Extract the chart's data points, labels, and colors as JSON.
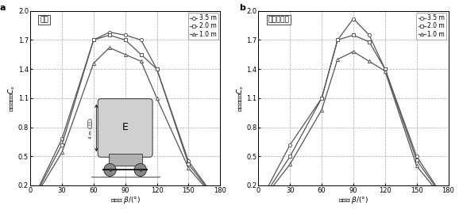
{
  "x": [
    0,
    30,
    60,
    75,
    90,
    105,
    120,
    150,
    180
  ],
  "panel_a": {
    "title": "头车",
    "series_35": [
      0.0,
      0.68,
      1.7,
      1.78,
      1.75,
      1.7,
      1.4,
      0.45,
      0.0
    ],
    "series_20": [
      0.0,
      0.62,
      1.7,
      1.75,
      1.7,
      1.55,
      1.4,
      0.42,
      0.0
    ],
    "series_10": [
      0.0,
      0.54,
      1.46,
      1.62,
      1.55,
      1.48,
      1.1,
      0.38,
      0.0
    ]
  },
  "panel_b": {
    "title": "第二节车厢",
    "series_35": [
      0.0,
      0.62,
      1.1,
      1.7,
      1.92,
      1.75,
      1.4,
      0.5,
      0.0
    ],
    "series_20": [
      0.0,
      0.5,
      1.1,
      1.7,
      1.75,
      1.68,
      1.4,
      0.46,
      0.0
    ],
    "series_10": [
      0.0,
      0.42,
      0.98,
      1.5,
      1.58,
      1.48,
      1.38,
      0.4,
      0.0
    ]
  },
  "legend_labels": [
    "3.5 m",
    "2.0 m",
    "1.0 m"
  ],
  "markers": [
    "o",
    "s",
    "^"
  ],
  "line_color": "#555555",
  "ylabel": "侧向力系数$C_s$",
  "xlabel": "风向角 $\\beta$/(°)",
  "ylim": [
    0.2,
    2.0
  ],
  "xlim": [
    0,
    180
  ],
  "yticks": [
    0.2,
    0.5,
    0.8,
    1.1,
    1.4,
    1.7,
    2.0
  ],
  "xticks": [
    0,
    30,
    60,
    90,
    120,
    150,
    180
  ],
  "grid_color": "#aaaaaa",
  "bg_color": "#ffffff",
  "annotation_4m": "4 m (含尺寸)"
}
